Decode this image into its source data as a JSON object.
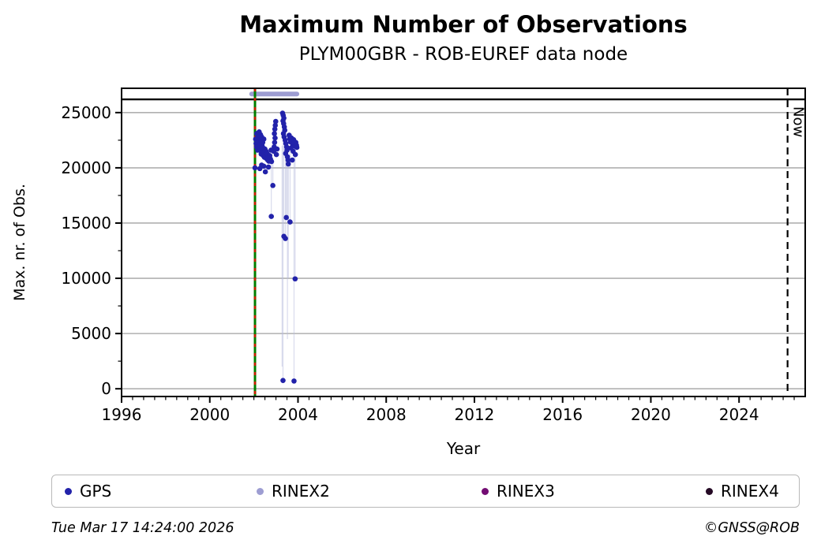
{
  "header": {
    "title": "Maximum Number of Observations",
    "subtitle": "PLYM00GBR - ROB-EUREF data node"
  },
  "footer": {
    "timestamp": "Tue Mar 17 14:24:00 2026",
    "copyright": "©GNSS@ROB"
  },
  "legend": {
    "items": [
      {
        "label": "GPS",
        "color": "#2222aa"
      },
      {
        "label": "RINEX2",
        "color": "#9d9dd2"
      },
      {
        "label": "RINEX3",
        "color": "#730d73"
      },
      {
        "label": "RINEX4",
        "color": "#250a25"
      }
    ]
  },
  "chart_data": {
    "type": "scatter",
    "title": "Maximum Number of Observations",
    "subtitle": "PLYM00GBR - ROB-EUREF data node",
    "xlabel": "Year",
    "ylabel": "Max. nr. of Obs.",
    "xlim": [
      1996,
      2027
    ],
    "ylim": [
      -700,
      27200
    ],
    "x_ticks": [
      1996,
      2000,
      2004,
      2008,
      2012,
      2016,
      2020,
      2024
    ],
    "y_ticks": [
      0,
      5000,
      10000,
      15000,
      20000,
      25000
    ],
    "x_minor_step": 0.5,
    "y_minor_step": 2500,
    "grid": "horizontal",
    "grid_color": "#b0b0b0",
    "series": [
      {
        "name": "GPS",
        "color": "#2222aa",
        "marker_radius": 3.3,
        "points": [
          [
            2002.08,
            22600
          ],
          [
            2002.1,
            22200
          ],
          [
            2002.12,
            21900
          ],
          [
            2002.13,
            23100
          ],
          [
            2002.15,
            22500
          ],
          [
            2002.17,
            21600
          ],
          [
            2002.18,
            22900
          ],
          [
            2002.2,
            22300
          ],
          [
            2002.22,
            21900
          ],
          [
            2002.24,
            23250
          ],
          [
            2002.25,
            22700
          ],
          [
            2002.27,
            22100
          ],
          [
            2002.28,
            21600
          ],
          [
            2002.3,
            23000
          ],
          [
            2002.32,
            22400
          ],
          [
            2002.33,
            21250
          ],
          [
            2002.35,
            22800
          ],
          [
            2002.37,
            22000
          ],
          [
            2002.38,
            21500
          ],
          [
            2002.4,
            22300
          ],
          [
            2002.42,
            21800
          ],
          [
            2002.43,
            21100
          ],
          [
            2002.45,
            22600
          ],
          [
            2002.47,
            21400
          ],
          [
            2002.48,
            20950
          ],
          [
            2002.5,
            21700
          ],
          [
            2002.52,
            21200
          ],
          [
            2002.55,
            21500
          ],
          [
            2002.57,
            20850
          ],
          [
            2002.6,
            21300
          ],
          [
            2002.63,
            20700
          ],
          [
            2002.65,
            21050
          ],
          [
            2002.68,
            20600
          ],
          [
            2002.72,
            21100
          ],
          [
            2002.75,
            20800
          ],
          [
            2002.78,
            21600
          ],
          [
            2002.05,
            20000
          ],
          [
            2002.27,
            19930
          ],
          [
            2002.52,
            19640
          ],
          [
            2002.66,
            20070
          ],
          [
            2002.8,
            20570
          ],
          [
            2002.35,
            20250
          ],
          [
            2002.45,
            20150
          ],
          [
            2002.9,
            21500
          ],
          [
            2002.92,
            21900
          ],
          [
            2002.94,
            22300
          ],
          [
            2002.96,
            22700
          ],
          [
            2002.93,
            23100
          ],
          [
            2002.95,
            23500
          ],
          [
            2002.97,
            23850
          ],
          [
            2002.99,
            24200
          ],
          [
            2003.02,
            21200
          ],
          [
            2003.05,
            21700
          ],
          [
            2003.3,
            24950
          ],
          [
            2003.33,
            24750
          ],
          [
            2003.36,
            24500
          ],
          [
            2003.32,
            24250
          ],
          [
            2003.35,
            24000
          ],
          [
            2003.38,
            23700
          ],
          [
            2003.4,
            23400
          ],
          [
            2003.34,
            23100
          ],
          [
            2003.37,
            22800
          ],
          [
            2003.42,
            22500
          ],
          [
            2003.45,
            22200
          ],
          [
            2003.48,
            21900
          ],
          [
            2003.5,
            21600
          ],
          [
            2003.44,
            21300
          ],
          [
            2003.52,
            21000
          ],
          [
            2003.55,
            20700
          ],
          [
            2003.56,
            20350
          ],
          [
            2003.6,
            22950
          ],
          [
            2003.63,
            22650
          ],
          [
            2003.66,
            22350
          ],
          [
            2003.7,
            22700
          ],
          [
            2003.73,
            22450
          ],
          [
            2003.76,
            22150
          ],
          [
            2003.8,
            22550
          ],
          [
            2003.83,
            22250
          ],
          [
            2003.86,
            21950
          ],
          [
            2003.9,
            22300
          ],
          [
            2003.93,
            22050
          ],
          [
            2003.68,
            21800
          ],
          [
            2003.78,
            21500
          ],
          [
            2003.88,
            21200
          ],
          [
            2003.95,
            21850
          ],
          [
            2003.74,
            20700
          ],
          [
            2002.86,
            18400
          ],
          [
            2002.79,
            15600
          ],
          [
            2003.47,
            15500
          ],
          [
            2003.64,
            15100
          ],
          [
            2003.36,
            13800
          ],
          [
            2003.43,
            13600
          ],
          [
            2003.87,
            9950
          ],
          [
            2003.32,
            750
          ],
          [
            2003.82,
            700
          ]
        ]
      },
      {
        "name": "RINEX2",
        "color": "#9d9dd2",
        "band": {
          "x1": 2001.9,
          "x2": 2003.95,
          "y": 26680,
          "thickness": 6
        },
        "points": []
      },
      {
        "name": "RINEX3",
        "color": "#730d73",
        "points": []
      },
      {
        "name": "RINEX4",
        "color": "#250a25",
        "points": []
      }
    ],
    "drop_lines": [
      [
        2002.79,
        20800,
        15600
      ],
      [
        2002.86,
        20800,
        18400
      ],
      [
        2003.28,
        22000,
        2000
      ],
      [
        2003.32,
        23000,
        750
      ],
      [
        2003.36,
        21800,
        13800
      ],
      [
        2003.43,
        21600,
        13600
      ],
      [
        2003.47,
        21800,
        15500
      ],
      [
        2003.52,
        21000,
        4500
      ],
      [
        2003.56,
        20350,
        10000
      ],
      [
        2003.64,
        21800,
        15100
      ],
      [
        2003.82,
        21500,
        700
      ],
      [
        2003.87,
        21200,
        9950
      ]
    ],
    "annotations": {
      "hline": {
        "y": 26200,
        "color": "#000000"
      },
      "start_line": {
        "x": 2002.05,
        "solid_color": "#007d00",
        "dash_color": "#cc1b00"
      },
      "now_line": {
        "x": 2026.2,
        "label": "Now",
        "color": "#000000"
      }
    },
    "legend_position": "bottom"
  }
}
